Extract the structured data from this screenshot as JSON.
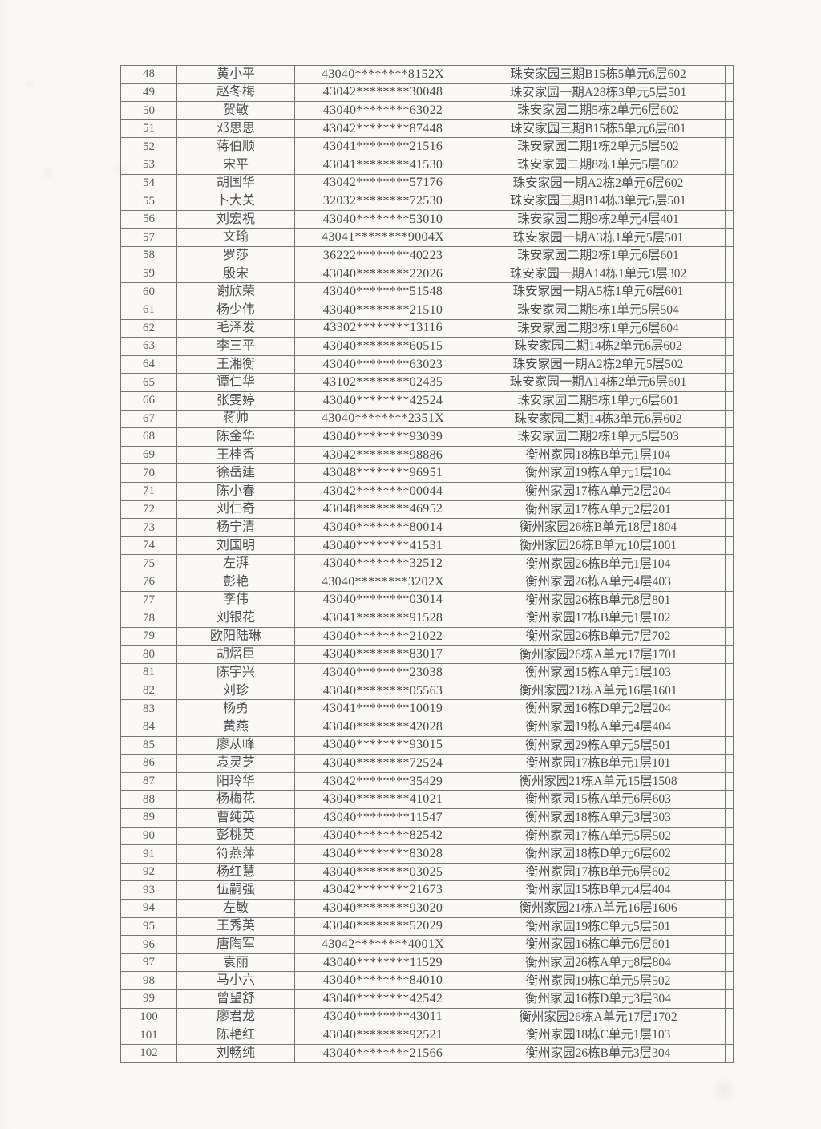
{
  "table": {
    "rows": [
      {
        "num": "48",
        "name": "黄小平",
        "id": "43040********8152X",
        "address": "珠安家园三期B15栋5单元6层602"
      },
      {
        "num": "49",
        "name": "赵冬梅",
        "id": "43042********30048",
        "address": "珠安家园一期A28栋3单元5层501"
      },
      {
        "num": "50",
        "name": "贺敏",
        "id": "43040********63022",
        "address": "珠安家园二期5栋2单元6层602"
      },
      {
        "num": "51",
        "name": "邓思思",
        "id": "43042********87448",
        "address": "珠安家园三期B15栋5单元6层601"
      },
      {
        "num": "52",
        "name": "蒋伯顺",
        "id": "43041********21516",
        "address": "珠安家园二期1栋2单元5层502"
      },
      {
        "num": "53",
        "name": "宋平",
        "id": "43041********41530",
        "address": "珠安家园二期8栋1单元5层502"
      },
      {
        "num": "54",
        "name": "胡国华",
        "id": "43042********57176",
        "address": "珠安家园一期A2栋2单元6层602"
      },
      {
        "num": "55",
        "name": "卜大关",
        "id": "32032********72530",
        "address": "珠安家园三期B14栋3单元5层501"
      },
      {
        "num": "56",
        "name": "刘宏祝",
        "id": "43040********53010",
        "address": "珠安家园二期9栋2单元4层401"
      },
      {
        "num": "57",
        "name": "文瑜",
        "id": "43041********9004X",
        "address": "珠安家园一期A3栋1单元5层501"
      },
      {
        "num": "58",
        "name": "罗莎",
        "id": "36222********40223",
        "address": "珠安家园二期2栋1单元6层601"
      },
      {
        "num": "59",
        "name": "殷宋",
        "id": "43040********22026",
        "address": "珠安家园一期A14栋1单元3层302"
      },
      {
        "num": "60",
        "name": "谢欣荣",
        "id": "43040********51548",
        "address": "珠安家园一期A5栋1单元6层601"
      },
      {
        "num": "61",
        "name": "杨少伟",
        "id": "43040********21510",
        "address": "珠安家园二期5栋1单元5层504"
      },
      {
        "num": "62",
        "name": "毛泽发",
        "id": "43302********13116",
        "address": "珠安家园二期3栋1单元6层604"
      },
      {
        "num": "63",
        "name": "李三平",
        "id": "43040********60515",
        "address": "珠安家园二期14栋2单元6层602"
      },
      {
        "num": "64",
        "name": "王湘衡",
        "id": "43040********63023",
        "address": "珠安家园一期A2栋2单元5层502"
      },
      {
        "num": "65",
        "name": "谭仁华",
        "id": "43102********02435",
        "address": "珠安家园一期A14栋2单元6层601"
      },
      {
        "num": "66",
        "name": "张雯婷",
        "id": "43040********42524",
        "address": "珠安家园二期5栋1单元6层601"
      },
      {
        "num": "67",
        "name": "蒋帅",
        "id": "43040********2351X",
        "address": "珠安家园二期14栋3单元6层602"
      },
      {
        "num": "68",
        "name": "陈金华",
        "id": "43040********93039",
        "address": "珠安家园二期2栋1单元5层503"
      },
      {
        "num": "69",
        "name": "王桂香",
        "id": "43042********98886",
        "address": "衡州家园18栋B单元1层104"
      },
      {
        "num": "70",
        "name": "徐岳建",
        "id": "43048********96951",
        "address": "衡州家园19栋A单元1层104"
      },
      {
        "num": "71",
        "name": "陈小春",
        "id": "43042********00044",
        "address": "衡州家园17栋A单元2层204"
      },
      {
        "num": "72",
        "name": "刘仁奇",
        "id": "43048********46952",
        "address": "衡州家园17栋A单元2层201"
      },
      {
        "num": "73",
        "name": "杨宁清",
        "id": "43040********80014",
        "address": "衡州家园26栋B单元18层1804"
      },
      {
        "num": "74",
        "name": "刘国明",
        "id": "43040********41531",
        "address": "衡州家园26栋B单元10层1001"
      },
      {
        "num": "75",
        "name": "左湃",
        "id": "43040********32512",
        "address": "衡州家园26栋B单元1层104"
      },
      {
        "num": "76",
        "name": "彭艳",
        "id": "43040********3202X",
        "address": "衡州家园26栋A单元4层403"
      },
      {
        "num": "77",
        "name": "李伟",
        "id": "43040********03014",
        "address": "衡州家园26栋B单元8层801"
      },
      {
        "num": "78",
        "name": "刘银花",
        "id": "43041********91528",
        "address": "衡州家园17栋B单元1层102"
      },
      {
        "num": "79",
        "name": "欧阳陆琳",
        "id": "43040********21022",
        "address": "衡州家园26栋B单元7层702"
      },
      {
        "num": "80",
        "name": "胡熠臣",
        "id": "43040********83017",
        "address": "衡州家园26栋A单元17层1701"
      },
      {
        "num": "81",
        "name": "陈宇兴",
        "id": "43040********23038",
        "address": "衡州家园15栋A单元1层103"
      },
      {
        "num": "82",
        "name": "刘珍",
        "id": "43040********05563",
        "address": "衡州家园21栋A单元16层1601"
      },
      {
        "num": "83",
        "name": "杨勇",
        "id": "43041********10019",
        "address": "衡州家园16栋D单元2层204"
      },
      {
        "num": "84",
        "name": "黄燕",
        "id": "43040********42028",
        "address": "衡州家园19栋A单元4层404"
      },
      {
        "num": "85",
        "name": "廖从峰",
        "id": "43040********93015",
        "address": "衡州家园29栋A单元5层501"
      },
      {
        "num": "86",
        "name": "袁灵芝",
        "id": "43040********72524",
        "address": "衡州家园17栋B单元1层101"
      },
      {
        "num": "87",
        "name": "阳玲华",
        "id": "43042********35429",
        "address": "衡州家园21栋A单元15层1508"
      },
      {
        "num": "88",
        "name": "杨梅花",
        "id": "43040********41021",
        "address": "衡州家园15栋A单元6层603"
      },
      {
        "num": "89",
        "name": "曹纯英",
        "id": "43040********11547",
        "address": "衡州家园18栋A单元3层303"
      },
      {
        "num": "90",
        "name": "彭桃英",
        "id": "43040********82542",
        "address": "衡州家园17栋A单元5层502"
      },
      {
        "num": "91",
        "name": "符燕萍",
        "id": "43040********83028",
        "address": "衡州家园18栋D单元6层602"
      },
      {
        "num": "92",
        "name": "杨红慧",
        "id": "43040********03025",
        "address": "衡州家园17栋B单元6层602"
      },
      {
        "num": "93",
        "name": "伍嗣强",
        "id": "43042********21673",
        "address": "衡州家园15栋B单元4层404"
      },
      {
        "num": "94",
        "name": "左敏",
        "id": "43040********93020",
        "address": "衡州家园21栋A单元16层1606"
      },
      {
        "num": "95",
        "name": "王秀英",
        "id": "43040********52029",
        "address": "衡州家园19栋C单元5层501"
      },
      {
        "num": "96",
        "name": "唐陶军",
        "id": "43042********4001X",
        "address": "衡州家园16栋C单元6层601"
      },
      {
        "num": "97",
        "name": "袁丽",
        "id": "43040********11529",
        "address": "衡州家园26栋A单元8层804"
      },
      {
        "num": "98",
        "name": "马小六",
        "id": "43040********84010",
        "address": "衡州家园19栋C单元5层502"
      },
      {
        "num": "99",
        "name": "曾望舒",
        "id": "43040********42542",
        "address": "衡州家园16栋D单元3层304"
      },
      {
        "num": "100",
        "name": "廖君龙",
        "id": "43040********43011",
        "address": "衡州家园26栋A单元17层1702"
      },
      {
        "num": "101",
        "name": "陈艳红",
        "id": "43040********92521",
        "address": "衡州家园18栋C单元1层103"
      },
      {
        "num": "102",
        "name": "刘畅纯",
        "id": "43040********21566",
        "address": "衡州家园26栋B单元3层304"
      }
    ]
  }
}
